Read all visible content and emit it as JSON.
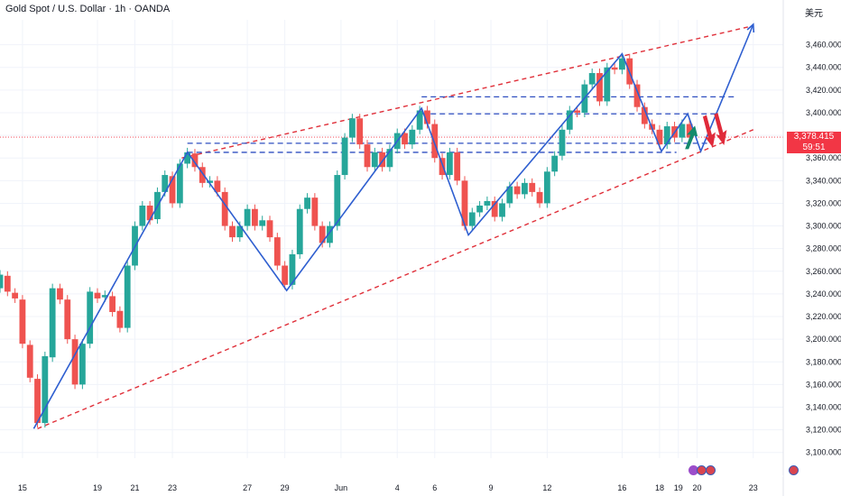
{
  "header": {
    "title": "Gold Spot / U.S. Dollar · 1h · OANDA",
    "currency": "美元"
  },
  "price_label": {
    "price": "3,378.415",
    "countdown": "59:51"
  },
  "colors": {
    "up": "#26a69a",
    "down": "#ef5350",
    "trend_line": "#2f5fd0",
    "channel": "#e0303a",
    "level": "#2f4fc0",
    "arrow_up": "#148a6b",
    "arrow_down": "#e02a3a",
    "price_tag": "#f23645"
  },
  "icons": [
    "lightning-icon",
    "us-flag-icon",
    "us-flag-icon"
  ],
  "chart_data": {
    "type": "candlestick",
    "symbol": "XAUUSD",
    "interval": "1h",
    "y_ticks": [
      3460,
      3440,
      3420,
      3400,
      3380,
      3360,
      3340,
      3320,
      3300,
      3280,
      3260,
      3240,
      3220,
      3200,
      3180,
      3160,
      3140,
      3120,
      3100
    ],
    "y_tick_labels": [
      "3,460.000",
      "3,440.000",
      "3,420.000",
      "3,400.000",
      "3,380.000",
      "3,360.000",
      "3,340.000",
      "3,320.000",
      "3,300.000",
      "3,280.000",
      "3,260.000",
      "3,240.000",
      "3,220.000",
      "3,200.000",
      "3,180.000",
      "3,160.000",
      "3,140.000",
      "3,120.000",
      "3,100.000"
    ],
    "ylim": [
      3095,
      3482
    ],
    "x_tick_labels": [
      "15",
      "19",
      "21",
      "23",
      "27",
      "29",
      "Jun",
      "4",
      "6",
      "9",
      "12",
      "16",
      "18",
      "19",
      "20",
      "23"
    ],
    "x_tick_days": [
      0,
      4,
      6,
      8,
      12,
      14,
      17,
      20,
      22,
      25,
      28,
      32,
      34,
      35,
      36,
      39
    ],
    "x_day_range": [
      -1.2,
      40.6
    ],
    "current_price": 3378.415,
    "zigzag": [
      [
        0.6,
        3121
      ],
      [
        8.8,
        3365
      ],
      [
        14.1,
        3243
      ],
      [
        21.3,
        3404
      ],
      [
        23.8,
        3292
      ],
      [
        32.0,
        3452
      ],
      [
        34.1,
        3366
      ],
      [
        35.5,
        3399
      ],
      [
        36.2,
        3366
      ],
      [
        39.0,
        3478
      ]
    ],
    "levels": [
      {
        "price": 3414,
        "from": 21.3,
        "to": 38.0
      },
      {
        "price": 3399,
        "from": 21.3,
        "to": 37.0
      },
      {
        "price": 3373,
        "from": 8.8,
        "to": 36.7
      },
      {
        "price": 3365,
        "from": 8.8,
        "to": 34.9
      }
    ],
    "channel_upper": [
      [
        8.5,
        3360
      ],
      [
        38.8,
        3476
      ]
    ],
    "channel_lower": [
      [
        0.8,
        3121
      ],
      [
        39.0,
        3385
      ]
    ],
    "arrows_down": [
      [
        36.6,
        3398
      ],
      [
        37.2,
        3400
      ]
    ],
    "arrow_up": [
      35.6,
      3379
    ],
    "candles": [
      [
        -1.2,
        3245,
        3257
      ],
      [
        -0.8,
        3256,
        3242
      ],
      [
        -0.4,
        3241,
        3236
      ],
      [
        0.0,
        3235,
        3196
      ],
      [
        0.4,
        3195,
        3166
      ],
      [
        0.8,
        3165,
        3126
      ],
      [
        1.2,
        3126,
        3185
      ],
      [
        1.6,
        3184,
        3245
      ],
      [
        2.0,
        3245,
        3235
      ],
      [
        2.4,
        3235,
        3200
      ],
      [
        2.8,
        3200,
        3160
      ],
      [
        3.2,
        3160,
        3196
      ],
      [
        3.6,
        3196,
        3242
      ],
      [
        4.0,
        3241,
        3236
      ],
      [
        4.4,
        3237,
        3239
      ],
      [
        4.8,
        3238,
        3224
      ],
      [
        5.2,
        3225,
        3210
      ],
      [
        5.6,
        3210,
        3265
      ],
      [
        6.0,
        3265,
        3300
      ],
      [
        6.4,
        3300,
        3318
      ],
      [
        6.8,
        3318,
        3305
      ],
      [
        7.2,
        3306,
        3330
      ],
      [
        7.6,
        3330,
        3345
      ],
      [
        8.0,
        3344,
        3320
      ],
      [
        8.4,
        3320,
        3355
      ],
      [
        8.8,
        3355,
        3365
      ],
      [
        9.2,
        3364,
        3352
      ],
      [
        9.6,
        3352,
        3338
      ],
      [
        10.0,
        3338,
        3340
      ],
      [
        10.4,
        3340,
        3330
      ],
      [
        10.8,
        3330,
        3300
      ],
      [
        11.2,
        3300,
        3290
      ],
      [
        11.6,
        3290,
        3300
      ],
      [
        12.0,
        3300,
        3315
      ],
      [
        12.4,
        3315,
        3300
      ],
      [
        12.8,
        3300,
        3305
      ],
      [
        13.2,
        3305,
        3290
      ],
      [
        13.6,
        3290,
        3265
      ],
      [
        14.0,
        3265,
        3248
      ],
      [
        14.4,
        3248,
        3275
      ],
      [
        14.8,
        3275,
        3315
      ],
      [
        15.2,
        3315,
        3325
      ],
      [
        15.6,
        3325,
        3300
      ],
      [
        16.0,
        3300,
        3285
      ],
      [
        16.4,
        3285,
        3300
      ],
      [
        16.8,
        3300,
        3345
      ],
      [
        17.2,
        3345,
        3378
      ],
      [
        17.6,
        3378,
        3395
      ],
      [
        18.0,
        3395,
        3372
      ],
      [
        18.4,
        3372,
        3352
      ],
      [
        18.8,
        3352,
        3365
      ],
      [
        19.2,
        3365,
        3352
      ],
      [
        19.6,
        3352,
        3368
      ],
      [
        20.0,
        3368,
        3382
      ],
      [
        20.4,
        3382,
        3372
      ],
      [
        20.8,
        3372,
        3385
      ],
      [
        21.2,
        3385,
        3402
      ],
      [
        21.6,
        3402,
        3390
      ],
      [
        22.0,
        3390,
        3360
      ],
      [
        22.4,
        3360,
        3345
      ],
      [
        22.8,
        3345,
        3365
      ],
      [
        23.2,
        3365,
        3340
      ],
      [
        23.6,
        3340,
        3300
      ],
      [
        24.0,
        3300,
        3312
      ],
      [
        24.4,
        3312,
        3318
      ],
      [
        24.8,
        3318,
        3322
      ],
      [
        25.2,
        3322,
        3308
      ],
      [
        25.6,
        3308,
        3320
      ],
      [
        26.0,
        3320,
        3335
      ],
      [
        26.4,
        3335,
        3328
      ],
      [
        26.8,
        3328,
        3338
      ],
      [
        27.2,
        3338,
        3330
      ],
      [
        27.6,
        3330,
        3320
      ],
      [
        28.0,
        3320,
        3348
      ],
      [
        28.4,
        3348,
        3362
      ],
      [
        28.8,
        3362,
        3385
      ],
      [
        29.2,
        3385,
        3402
      ],
      [
        29.6,
        3402,
        3400
      ],
      [
        30.0,
        3400,
        3425
      ],
      [
        30.4,
        3425,
        3435
      ],
      [
        30.8,
        3435,
        3410
      ],
      [
        31.2,
        3410,
        3440
      ],
      [
        31.6,
        3440,
        3438
      ],
      [
        32.0,
        3438,
        3448
      ],
      [
        32.4,
        3448,
        3425
      ],
      [
        32.8,
        3425,
        3405
      ],
      [
        33.2,
        3405,
        3390
      ],
      [
        33.6,
        3390,
        3385
      ],
      [
        34.0,
        3385,
        3372
      ],
      [
        34.4,
        3372,
        3388
      ],
      [
        34.8,
        3388,
        3378
      ],
      [
        35.2,
        3378,
        3390
      ],
      [
        35.6,
        3390,
        3378
      ]
    ]
  }
}
